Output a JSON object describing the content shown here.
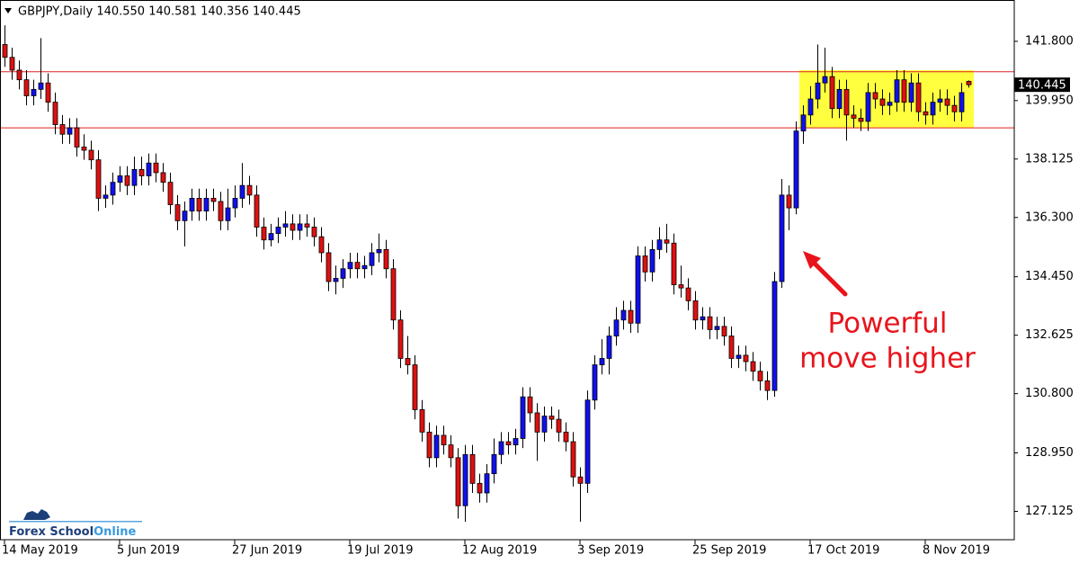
{
  "chart_data": {
    "type": "candlestick",
    "title": "GBPJPY,Daily 140.550 140.581 140.356 140.445",
    "categories": [
      "14 May 2019",
      null,
      null,
      null,
      null,
      null,
      null,
      null,
      null,
      null,
      null,
      null,
      null,
      null,
      null,
      null,
      "5 Jun 2019",
      null,
      null,
      null,
      null,
      null,
      null,
      null,
      null,
      null,
      null,
      null,
      null,
      null,
      null,
      null,
      "27 Jun 2019",
      null,
      null,
      null,
      null,
      null,
      null,
      null,
      null,
      null,
      null,
      null,
      null,
      null,
      null,
      null,
      "19 Jul 2019",
      null,
      null,
      null,
      null,
      null,
      null,
      null,
      null,
      null,
      null,
      null,
      null,
      null,
      null,
      null,
      "12 Aug 2019",
      null,
      null,
      null,
      null,
      null,
      null,
      null,
      null,
      null,
      null,
      null,
      null,
      null,
      null,
      null,
      "3 Sep 2019",
      null,
      null,
      null,
      null,
      null,
      null,
      null,
      null,
      null,
      null,
      null,
      null,
      null,
      null,
      null,
      "25 Sep 2019",
      null,
      null,
      null,
      null,
      null,
      null,
      null,
      null,
      null,
      null,
      null,
      null,
      null,
      null,
      null,
      "17 Oct 2019",
      null,
      null,
      null,
      null,
      null,
      null,
      null,
      null,
      null,
      null,
      null,
      null,
      null,
      null,
      null,
      "8 Nov 2019",
      null,
      null,
      null,
      null,
      null,
      null
    ],
    "open": [
      141.7,
      141.3,
      140.9,
      140.6,
      140.1,
      140.3,
      140.5,
      139.9,
      139.2,
      138.9,
      139.1,
      138.5,
      138.4,
      138.1,
      136.9,
      137.0,
      137.4,
      137.6,
      137.3,
      137.8,
      137.6,
      138.0,
      137.7,
      137.4,
      136.7,
      136.2,
      136.5,
      136.9,
      136.5,
      136.9,
      136.8,
      136.2,
      136.6,
      136.9,
      137.3,
      137.0,
      136.0,
      135.6,
      135.8,
      136.0,
      136.1,
      135.9,
      136.1,
      136.0,
      135.7,
      135.2,
      134.3,
      134.4,
      134.7,
      134.9,
      134.7,
      134.8,
      135.2,
      135.3,
      134.7,
      133.1,
      131.9,
      131.7,
      130.3,
      129.6,
      128.8,
      129.5,
      129.2,
      128.8,
      127.3,
      128.9,
      128.0,
      127.7,
      128.3,
      128.9,
      129.3,
      129.2,
      129.4,
      130.7,
      130.2,
      129.6,
      130.1,
      130.0,
      129.6,
      129.3,
      128.2,
      128.0,
      130.6,
      131.7,
      131.9,
      132.6,
      133.1,
      133.4,
      133.0,
      135.1,
      134.6,
      135.3,
      135.6,
      135.5,
      134.2,
      134.1,
      133.7,
      133.1,
      133.2,
      132.8,
      132.9,
      132.6,
      131.9,
      132.0,
      131.8,
      131.5,
      131.2,
      130.9,
      134.3,
      137.0,
      136.6,
      139.0,
      139.5,
      140.0,
      140.5,
      140.7,
      139.7,
      140.3,
      139.5,
      139.4,
      139.3,
      140.2,
      140.0,
      139.8,
      139.9,
      140.6,
      139.9,
      140.5,
      139.6,
      139.5,
      139.9,
      140.0,
      139.8,
      139.6,
      140.55
    ],
    "high": [
      142.3,
      141.6,
      141.2,
      140.9,
      140.6,
      141.9,
      140.8,
      140.2,
      139.5,
      139.4,
      139.4,
      138.9,
      138.7,
      138.4,
      137.3,
      137.7,
      137.9,
      137.9,
      138.2,
      138.2,
      138.3,
      138.3,
      138.0,
      137.7,
      137.0,
      136.8,
      137.2,
      137.2,
      137.2,
      137.2,
      137.1,
      137.2,
      137.3,
      138.0,
      137.6,
      137.3,
      136.3,
      136.1,
      136.3,
      136.5,
      136.4,
      136.4,
      136.4,
      136.3,
      136.0,
      135.5,
      134.8,
      135.0,
      135.2,
      135.2,
      135.1,
      135.5,
      135.8,
      135.6,
      135.0,
      133.4,
      132.6,
      132.0,
      130.6,
      129.9,
      129.8,
      129.8,
      129.5,
      129.1,
      129.2,
      129.2,
      128.3,
      128.6,
      129.4,
      129.6,
      129.6,
      129.7,
      131.0,
      131.0,
      130.5,
      130.4,
      130.4,
      130.3,
      129.9,
      129.6,
      128.5,
      130.9,
      132.0,
      132.5,
      132.9,
      133.5,
      133.7,
      133.7,
      135.4,
      135.4,
      135.6,
      136.0,
      136.1,
      135.8,
      134.8,
      134.4,
      134.0,
      133.5,
      133.5,
      133.2,
      133.2,
      132.9,
      132.3,
      132.3,
      132.1,
      131.8,
      131.5,
      134.6,
      137.5,
      137.3,
      139.3,
      139.8,
      140.4,
      141.7,
      141.6,
      141.0,
      140.6,
      140.6,
      139.8,
      139.7,
      140.5,
      140.5,
      140.3,
      140.2,
      140.9,
      140.9,
      140.8,
      140.8,
      139.9,
      140.2,
      140.3,
      140.3,
      140.1,
      140.5,
      140.581
    ],
    "low": [
      141.0,
      140.6,
      140.3,
      139.8,
      139.8,
      140.0,
      139.6,
      138.9,
      138.6,
      138.6,
      138.2,
      138.1,
      137.8,
      136.5,
      136.6,
      136.7,
      137.1,
      137.0,
      137.0,
      137.3,
      137.3,
      137.4,
      137.1,
      136.4,
      135.9,
      135.4,
      136.2,
      136.2,
      136.2,
      136.5,
      135.9,
      135.9,
      136.3,
      136.6,
      136.7,
      135.7,
      135.3,
      135.4,
      135.5,
      135.7,
      135.6,
      135.6,
      135.7,
      135.4,
      134.9,
      134.0,
      133.9,
      134.1,
      134.4,
      134.4,
      134.4,
      134.5,
      134.9,
      134.4,
      132.8,
      131.6,
      131.4,
      130.0,
      129.3,
      128.5,
      128.5,
      128.9,
      128.5,
      126.9,
      126.8,
      127.7,
      127.4,
      127.4,
      128.0,
      128.6,
      128.9,
      128.9,
      129.1,
      129.9,
      128.7,
      129.3,
      129.7,
      129.3,
      129.0,
      127.9,
      126.8,
      127.7,
      130.3,
      131.4,
      131.4,
      132.3,
      132.8,
      132.7,
      132.7,
      134.3,
      134.3,
      135.0,
      135.2,
      133.9,
      133.8,
      133.4,
      132.8,
      132.8,
      132.5,
      132.5,
      132.3,
      131.6,
      131.6,
      131.5,
      131.2,
      130.9,
      130.6,
      130.7,
      134.1,
      135.9,
      136.4,
      138.6,
      139.2,
      139.7,
      140.2,
      139.4,
      139.4,
      138.7,
      139.1,
      139.0,
      139.0,
      139.7,
      139.5,
      139.5,
      139.6,
      139.6,
      139.6,
      139.3,
      139.2,
      139.2,
      139.6,
      139.5,
      139.3,
      139.3,
      140.356
    ],
    "close": [
      141.3,
      140.9,
      140.6,
      140.1,
      140.3,
      140.5,
      139.9,
      139.2,
      138.9,
      139.1,
      138.5,
      138.4,
      138.1,
      136.9,
      137.0,
      137.4,
      137.6,
      137.3,
      137.8,
      137.6,
      138.0,
      137.7,
      137.4,
      136.7,
      136.2,
      136.5,
      136.9,
      136.5,
      136.9,
      136.8,
      136.2,
      136.6,
      136.9,
      137.3,
      137.0,
      136.0,
      135.6,
      135.8,
      136.0,
      136.1,
      135.9,
      136.1,
      136.0,
      135.7,
      135.2,
      134.3,
      134.4,
      134.7,
      134.9,
      134.7,
      134.8,
      135.2,
      135.3,
      134.7,
      133.1,
      131.9,
      131.7,
      130.3,
      129.6,
      128.8,
      129.5,
      129.2,
      128.8,
      127.3,
      128.9,
      128.0,
      127.7,
      128.3,
      128.9,
      129.3,
      129.2,
      129.4,
      130.7,
      130.2,
      129.6,
      130.1,
      130.0,
      129.6,
      129.3,
      128.2,
      128.0,
      130.6,
      131.7,
      131.9,
      132.6,
      133.1,
      133.4,
      133.0,
      135.1,
      134.6,
      135.3,
      135.6,
      135.5,
      134.2,
      134.1,
      133.7,
      133.1,
      133.2,
      132.8,
      132.9,
      132.6,
      131.9,
      132.0,
      131.8,
      131.5,
      131.2,
      130.9,
      134.3,
      137.0,
      136.6,
      139.0,
      139.5,
      140.0,
      140.5,
      140.7,
      139.7,
      140.3,
      139.5,
      139.4,
      139.3,
      140.2,
      140.0,
      139.8,
      139.9,
      140.6,
      139.9,
      140.5,
      139.6,
      139.5,
      139.9,
      140.0,
      139.8,
      139.6,
      140.2,
      140.445
    ],
    "bull_color": "#1010f0",
    "bear_color": "#e01010",
    "ylim": [
      126.24,
      143.09
    ],
    "yticks": [
      {
        "value": 141.8,
        "label": "141.800"
      },
      {
        "value": 139.95,
        "label": "139.950"
      },
      138.125,
      {
        "value": 136.3,
        "label": "136.300"
      },
      {
        "value": 134.45,
        "label": "134.450"
      },
      132.625,
      {
        "value": 130.8,
        "label": "130.800"
      },
      {
        "value": 128.95,
        "label": "128.950"
      },
      127.125
    ],
    "last_price": 140.445,
    "hlines": [
      140.85,
      139.1
    ],
    "hline_color": "#e02020",
    "zone": {
      "from": 111,
      "to": 134,
      "ymin": 139.1,
      "ymax": 140.9,
      "color": "#ffff40"
    },
    "annotation": [
      "Powerful",
      "move higher"
    ],
    "annotation_color": "#e8141c",
    "watermark": [
      "Forex School",
      "Online"
    ]
  }
}
